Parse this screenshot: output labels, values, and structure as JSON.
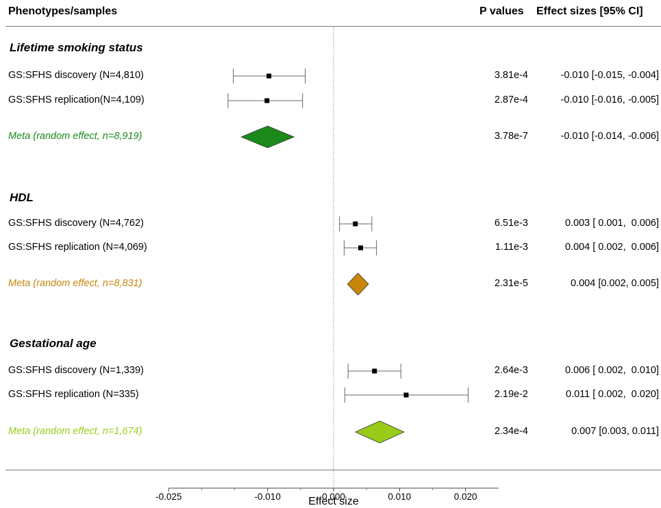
{
  "header": {
    "left": "Phenotypes/samples",
    "pvalues": "P values",
    "effect": "Effect sizes [95% CI]"
  },
  "chart_data": {
    "type": "forest",
    "xlabel": "Effect size",
    "xlim": [
      -0.025,
      0.025
    ],
    "ticks": [
      -0.025,
      -0.01,
      0.0,
      0.01,
      0.02
    ],
    "tick_labels": [
      "-0.025",
      "-0.010",
      "0.000",
      "0.010",
      "0.020"
    ],
    "reference_line": 0,
    "groups": [
      {
        "title": "Lifetime smoking status",
        "meta_color": "#1a8a1a",
        "rows": [
          {
            "label": "GS:SFHS discovery (N=4,810)",
            "est": -0.0098,
            "lo": -0.0152,
            "hi": -0.0043,
            "p": "3.81e-4",
            "ci": "-0.010 [-0.015, -0.004]",
            "meta": false
          },
          {
            "label": "GS:SFHS replication(N=4,109)",
            "est": -0.0101,
            "lo": -0.016,
            "hi": -0.0047,
            "p": "2.87e-4",
            "ci": "-0.010 [-0.016, -0.005]",
            "meta": false
          },
          {
            "label": "Meta (random effect, n=8,919)",
            "est": -0.01,
            "lo": -0.014,
            "hi": -0.006,
            "p": "3.78e-7",
            "ci": "-0.010 [-0.014, -0.006]",
            "meta": true
          }
        ]
      },
      {
        "title": "HDL",
        "meta_color": "#c8870a",
        "rows": [
          {
            "label": "GS:SFHS discovery (N=4,762)",
            "est": 0.0033,
            "lo": 0.0009,
            "hi": 0.0058,
            "p": "6.51e-3",
            "ci": "0.003 [ 0.001,  0.006]",
            "meta": false
          },
          {
            "label": "GS:SFHS replication (N=4,069)",
            "est": 0.0041,
            "lo": 0.0016,
            "hi": 0.0065,
            "p": "1.11e-3",
            "ci": "0.004 [ 0.002,  0.006]",
            "meta": false
          },
          {
            "label": "Meta (random effect, n=8,831)",
            "est": 0.0037,
            "lo": 0.0021,
            "hi": 0.0053,
            "p": "2.31e-5",
            "ci": "0.004 [0.002, 0.005]",
            "meta": true
          }
        ]
      },
      {
        "title": "Gestational age",
        "meta_color": "#99cc1a",
        "rows": [
          {
            "label": "GS:SFHS discovery (N=1,339)",
            "est": 0.0062,
            "lo": 0.0022,
            "hi": 0.0102,
            "p": "2.64e-3",
            "ci": "0.006 [ 0.002,  0.010]",
            "meta": false
          },
          {
            "label": "GS:SFHS replication (N=335)",
            "est": 0.011,
            "lo": 0.0017,
            "hi": 0.0204,
            "p": "2.19e-2",
            "ci": "0.011 [ 0.002,  0.020]",
            "meta": true,
            "is_study": true
          },
          {
            "label": "Meta (random effect, n=1,674)",
            "est": 0.007,
            "lo": 0.0033,
            "hi": 0.0107,
            "p": "2.34e-4",
            "ci": "0.007 [0.003, 0.011]",
            "meta": true
          }
        ]
      }
    ]
  }
}
